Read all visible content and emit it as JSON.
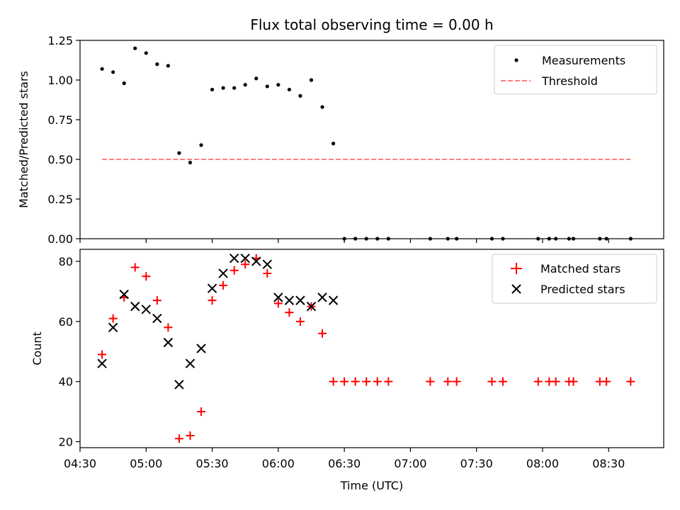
{
  "chart_data": [
    {
      "type": "scatter",
      "title": "Flux total observing time = 0.00 h",
      "xlabel": "",
      "ylabel": "Matched/Predicted stars",
      "ylim": [
        0,
        1.25
      ],
      "yticks": [
        "0.00",
        "0.25",
        "0.50",
        "0.75",
        "1.00",
        "1.25"
      ],
      "xlim": [
        "04:30",
        "08:55"
      ],
      "xticks": [
        "04:30",
        "05:00",
        "05:30",
        "06:00",
        "06:30",
        "07:00",
        "07:30",
        "08:00",
        "08:30"
      ],
      "x_tick_labels_shown": false,
      "legend_position": "top-right",
      "series": [
        {
          "name": "Measurements",
          "marker": "dot",
          "color": "#000000",
          "points": [
            [
              "04:40",
              1.07
            ],
            [
              "04:45",
              1.05
            ],
            [
              "04:50",
              0.98
            ],
            [
              "04:55",
              1.2
            ],
            [
              "05:00",
              1.17
            ],
            [
              "05:05",
              1.1
            ],
            [
              "05:10",
              1.09
            ],
            [
              "05:15",
              0.54
            ],
            [
              "05:20",
              0.48
            ],
            [
              "05:25",
              0.59
            ],
            [
              "05:30",
              0.94
            ],
            [
              "05:35",
              0.95
            ],
            [
              "05:40",
              0.95
            ],
            [
              "05:45",
              0.97
            ],
            [
              "05:50",
              1.01
            ],
            [
              "05:55",
              0.96
            ],
            [
              "06:00",
              0.97
            ],
            [
              "06:05",
              0.94
            ],
            [
              "06:10",
              0.9
            ],
            [
              "06:15",
              1.0
            ],
            [
              "06:20",
              0.83
            ],
            [
              "06:25",
              0.6
            ],
            [
              "06:30",
              0.0
            ],
            [
              "06:35",
              0.0
            ],
            [
              "06:40",
              0.0
            ],
            [
              "06:45",
              0.0
            ],
            [
              "06:50",
              0.0
            ],
            [
              "07:09",
              0.0
            ],
            [
              "07:17",
              0.0
            ],
            [
              "07:21",
              0.0
            ],
            [
              "07:37",
              0.0
            ],
            [
              "07:42",
              0.0
            ],
            [
              "07:58",
              0.0
            ],
            [
              "08:03",
              0.0
            ],
            [
              "08:06",
              0.0
            ],
            [
              "08:12",
              0.0
            ],
            [
              "08:14",
              0.0
            ],
            [
              "08:26",
              0.0
            ],
            [
              "08:29",
              0.0
            ],
            [
              "08:40",
              0.0
            ]
          ]
        },
        {
          "name": "Threshold",
          "line": "dashed",
          "color": "#ff7f7f",
          "points": [
            [
              "04:40",
              0.5
            ],
            [
              "08:40",
              0.5
            ]
          ]
        }
      ]
    },
    {
      "type": "scatter",
      "title": "",
      "xlabel": "Time (UTC)",
      "ylabel": "Count",
      "ylim": [
        18,
        84
      ],
      "yticks": [
        "20",
        "40",
        "60",
        "80"
      ],
      "xlim": [
        "04:30",
        "08:55"
      ],
      "xticks": [
        "04:30",
        "05:00",
        "05:30",
        "06:00",
        "06:30",
        "07:00",
        "07:30",
        "08:00",
        "08:30"
      ],
      "x_tick_labels_shown": true,
      "legend_position": "top-right",
      "series": [
        {
          "name": "Matched stars",
          "marker": "plus",
          "color": "#ff0000",
          "points": [
            [
              "04:40",
              49
            ],
            [
              "04:45",
              61
            ],
            [
              "04:50",
              68
            ],
            [
              "04:55",
              78
            ],
            [
              "05:00",
              75
            ],
            [
              "05:05",
              67
            ],
            [
              "05:10",
              58
            ],
            [
              "05:15",
              21
            ],
            [
              "05:20",
              22
            ],
            [
              "05:25",
              30
            ],
            [
              "05:30",
              67
            ],
            [
              "05:35",
              72
            ],
            [
              "05:40",
              77
            ],
            [
              "05:45",
              79
            ],
            [
              "05:50",
              81
            ],
            [
              "05:55",
              76
            ],
            [
              "06:00",
              66
            ],
            [
              "06:05",
              63
            ],
            [
              "06:10",
              60
            ],
            [
              "06:15",
              65
            ],
            [
              "06:20",
              56
            ],
            [
              "06:25",
              40
            ],
            [
              "06:30",
              40
            ],
            [
              "06:35",
              40
            ],
            [
              "06:40",
              40
            ],
            [
              "06:45",
              40
            ],
            [
              "06:50",
              40
            ],
            [
              "07:09",
              40
            ],
            [
              "07:17",
              40
            ],
            [
              "07:21",
              40
            ],
            [
              "07:37",
              40
            ],
            [
              "07:42",
              40
            ],
            [
              "07:58",
              40
            ],
            [
              "08:03",
              40
            ],
            [
              "08:06",
              40
            ],
            [
              "08:12",
              40
            ],
            [
              "08:14",
              40
            ],
            [
              "08:26",
              40
            ],
            [
              "08:29",
              40
            ],
            [
              "08:40",
              40
            ]
          ]
        },
        {
          "name": "Predicted stars",
          "marker": "x",
          "color": "#000000",
          "points": [
            [
              "04:40",
              46
            ],
            [
              "04:45",
              58
            ],
            [
              "04:50",
              69
            ],
            [
              "04:55",
              65
            ],
            [
              "05:00",
              64
            ],
            [
              "05:05",
              61
            ],
            [
              "05:10",
              53
            ],
            [
              "05:15",
              39
            ],
            [
              "05:20",
              46
            ],
            [
              "05:25",
              51
            ],
            [
              "05:30",
              71
            ],
            [
              "05:35",
              76
            ],
            [
              "05:40",
              81
            ],
            [
              "05:45",
              81
            ],
            [
              "05:50",
              80
            ],
            [
              "05:55",
              79
            ],
            [
              "06:00",
              68
            ],
            [
              "06:05",
              67
            ],
            [
              "06:10",
              67
            ],
            [
              "06:15",
              65
            ],
            [
              "06:20",
              68
            ],
            [
              "06:25",
              67
            ]
          ]
        }
      ]
    }
  ]
}
